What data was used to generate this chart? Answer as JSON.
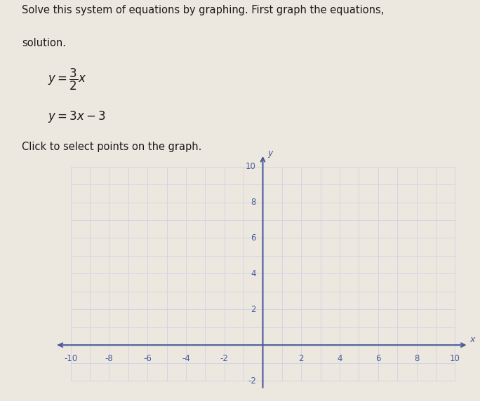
{
  "title_line1": "Solve this system of equations by graphing. First graph the equations,",
  "title_line2": "solution.",
  "click_label": "Click to select points on the graph.",
  "xlim": [
    -10,
    10
  ],
  "ylim": [
    -2,
    10
  ],
  "xticks": [
    -10,
    -8,
    -6,
    -4,
    -2,
    2,
    4,
    6,
    8,
    10
  ],
  "yticks": [
    2,
    4,
    6,
    8,
    10
  ],
  "ytick_neg": [
    -2
  ],
  "grid_color": "#b0bedd",
  "axis_color": "#4a5a9a",
  "tick_label_color": "#4a5a9a",
  "background_color": "#ede8df",
  "graph_bg_color": "#e8e4f0",
  "text_color": "#1a1a1a",
  "font_size_text": 11,
  "minor_grid_color": "#c5cfe6"
}
